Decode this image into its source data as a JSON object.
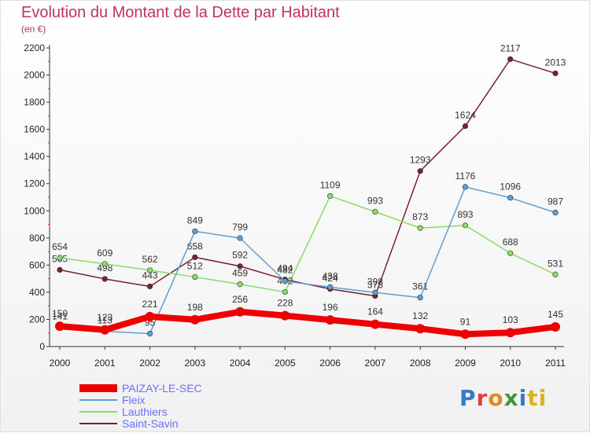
{
  "header": {
    "title": "Evolution du Montant de la Dette par Habitant",
    "subtitle": "(en €)"
  },
  "logo": {
    "text": "Proxiti",
    "letters": [
      "P",
      "r",
      "o",
      "x",
      "i",
      "ti"
    ]
  },
  "chart_data": {
    "type": "line",
    "x": [
      "2000",
      "2001",
      "2002",
      "2003",
      "2004",
      "2005",
      "2006",
      "2007",
      "2008",
      "2009",
      "2010",
      "2011"
    ],
    "ylim": [
      0,
      2200
    ],
    "yticks": [
      0,
      200,
      400,
      600,
      800,
      1000,
      1200,
      1400,
      1600,
      1800,
      2000,
      2200
    ],
    "grid": false,
    "legend_position": "bottom-left",
    "series": [
      {
        "name": "Saint-Savin",
        "color": "#7a2030",
        "values": [
          565,
          498,
          443,
          658,
          592,
          494,
          424,
          373,
          1293,
          1624,
          2117,
          2013
        ],
        "labels": [
          "565",
          "498",
          "443",
          "658",
          "592",
          "494",
          "424",
          "373",
          "1293",
          "1624",
          "2117",
          "2013"
        ]
      },
      {
        "name": "Lauthiers",
        "color": "#88dd66",
        "values": [
          654,
          609,
          562,
          512,
          459,
          402,
          1109,
          993,
          873,
          893,
          688,
          531
        ],
        "labels": [
          "654",
          "609",
          "562",
          "512",
          "459",
          "402",
          "1109",
          "993",
          "873",
          "893",
          "688",
          "531"
        ]
      },
      {
        "name": "Fleix",
        "color": "#5f9fd3",
        "values": [
          141,
          113,
          95,
          849,
          799,
          482,
          438,
          398,
          361,
          1176,
          1096,
          987
        ],
        "labels": [
          "141",
          "113",
          "95",
          "849",
          "799",
          "482",
          "438",
          "398",
          "361",
          "1176",
          "1096",
          "987"
        ]
      },
      {
        "name": "PAIZAY-LE-SEC",
        "color": "#ee0000",
        "values": [
          150,
          123,
          221,
          198,
          256,
          228,
          196,
          164,
          132,
          91,
          103,
          145
        ],
        "labels": [
          "150",
          "123",
          "221",
          "198",
          "256",
          "228",
          "196",
          "164",
          "132",
          "91",
          "103",
          "145"
        ]
      }
    ]
  },
  "legend": [
    {
      "label": "PAIZAY-LE-SEC",
      "color": "#ee0000"
    },
    {
      "label": "Fleix",
      "color": "#5f9fd3"
    },
    {
      "label": "Lauthiers",
      "color": "#88dd66"
    },
    {
      "label": "Saint-Savin",
      "color": "#7a2030"
    }
  ]
}
